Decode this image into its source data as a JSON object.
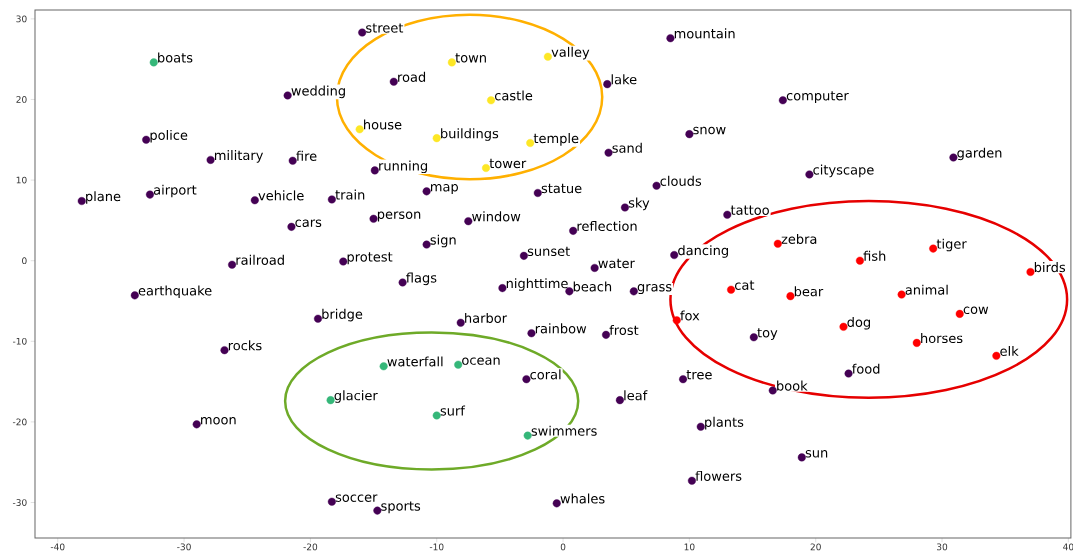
{
  "chart_data": {
    "type": "scatter",
    "marker": "circle",
    "xlim": [
      -41.8,
      40.2
    ],
    "ylim": [
      -34.4,
      31.1
    ],
    "xticks": [
      -40,
      -30,
      -20,
      -10,
      0,
      10,
      20,
      30,
      40
    ],
    "yticks": [
      -30,
      -20,
      -10,
      0,
      10,
      20,
      30
    ],
    "series": [
      {
        "color": "#440154",
        "x": [
          -15.9,
          8.5,
          -13.4,
          -21.8,
          3.5,
          17.4,
          -33.0,
          10.0,
          -27.9,
          -21.4,
          3.6,
          30.9,
          -14.9,
          19.5,
          -10.8,
          -38.1,
          -32.7,
          -24.4,
          -18.3,
          -2.0,
          7.4,
          4.9,
          -15.0,
          -7.5,
          13.0,
          -21.5,
          0.8,
          -10.8,
          8.8,
          -26.2,
          -17.4,
          -3.1,
          2.5,
          -12.7,
          -4.8,
          0.5,
          5.6,
          -33.9,
          -19.4,
          -8.1,
          -2.5,
          3.4,
          15.1,
          -26.8,
          -2.9,
          9.5,
          16.6,
          22.6,
          4.5,
          -29.0,
          10.9,
          18.9,
          10.2,
          -18.3,
          -14.7,
          -0.5
        ],
        "values": [
          28.3,
          27.6,
          22.2,
          20.5,
          21.9,
          19.9,
          15.0,
          15.7,
          12.5,
          12.4,
          13.4,
          12.8,
          11.2,
          10.7,
          8.6,
          7.4,
          8.2,
          7.5,
          7.6,
          8.4,
          9.3,
          6.6,
          5.2,
          4.9,
          5.7,
          4.2,
          3.7,
          2.0,
          0.7,
          -0.5,
          -0.1,
          0.6,
          -0.9,
          -2.7,
          -3.4,
          -3.8,
          -3.8,
          -4.3,
          -7.2,
          -7.7,
          -9.0,
          -9.2,
          -9.5,
          -11.1,
          -14.7,
          -14.7,
          -16.1,
          -14.0,
          -17.3,
          -20.3,
          -20.6,
          -24.4,
          -27.3,
          -29.9,
          -31.0,
          -30.1
        ],
        "value_labels": [
          "street",
          "mountain",
          "road",
          "wedding",
          "lake",
          "computer",
          "police",
          "snow",
          "military",
          "fire",
          "sand",
          "garden",
          "running",
          "cityscape",
          "map",
          "plane",
          "airport",
          "vehicle",
          "train",
          "statue",
          "clouds",
          "sky",
          "person",
          "window",
          "tattoo",
          "cars",
          "reflection",
          "sign",
          "dancing",
          "railroad",
          "protest",
          "sunset",
          "water",
          "flags",
          "nighttime",
          "beach",
          "grass",
          "earthquake",
          "bridge",
          "harbor",
          "rainbow",
          "frost",
          "toy",
          "rocks",
          "coral",
          "tree",
          "book",
          "food",
          "leaf",
          "moon",
          "plants",
          "sun",
          "flowers",
          "soccer",
          "sports",
          "whales"
        ]
      },
      {
        "color": "#fde725",
        "x": [
          -8.8,
          -1.2,
          -5.7,
          -16.1,
          -10.0,
          -2.6,
          -6.1
        ],
        "values": [
          24.6,
          25.3,
          19.9,
          16.3,
          15.2,
          14.6,
          11.5
        ],
        "value_labels": [
          "town",
          "valley",
          "castle",
          "house",
          "buildings",
          "temple",
          "tower"
        ]
      },
      {
        "color": "#35b779",
        "x": [
          -32.4,
          -14.2,
          -8.3,
          -18.4,
          -10.0,
          -2.8
        ],
        "values": [
          24.6,
          -13.1,
          -12.9,
          -17.3,
          -19.2,
          -21.7
        ],
        "value_labels": [
          "boats",
          "waterfall",
          "ocean",
          "glacier",
          "surf",
          "swimmers"
        ]
      },
      {
        "color": "#ff0000",
        "x": [
          17.0,
          23.5,
          29.3,
          37.0,
          13.3,
          18.0,
          26.8,
          9.0,
          22.2,
          31.4,
          28.0,
          34.3
        ],
        "values": [
          2.1,
          0.0,
          1.5,
          -1.4,
          -3.6,
          -4.4,
          -4.2,
          -7.4,
          -8.2,
          -6.6,
          -10.2,
          -11.8
        ],
        "value_labels": [
          "zebra",
          "fish",
          "tiger",
          "birds",
          "cat",
          "bear",
          "animal",
          "fox",
          "dog",
          "cow",
          "horses",
          "elk"
        ]
      }
    ]
  }
}
